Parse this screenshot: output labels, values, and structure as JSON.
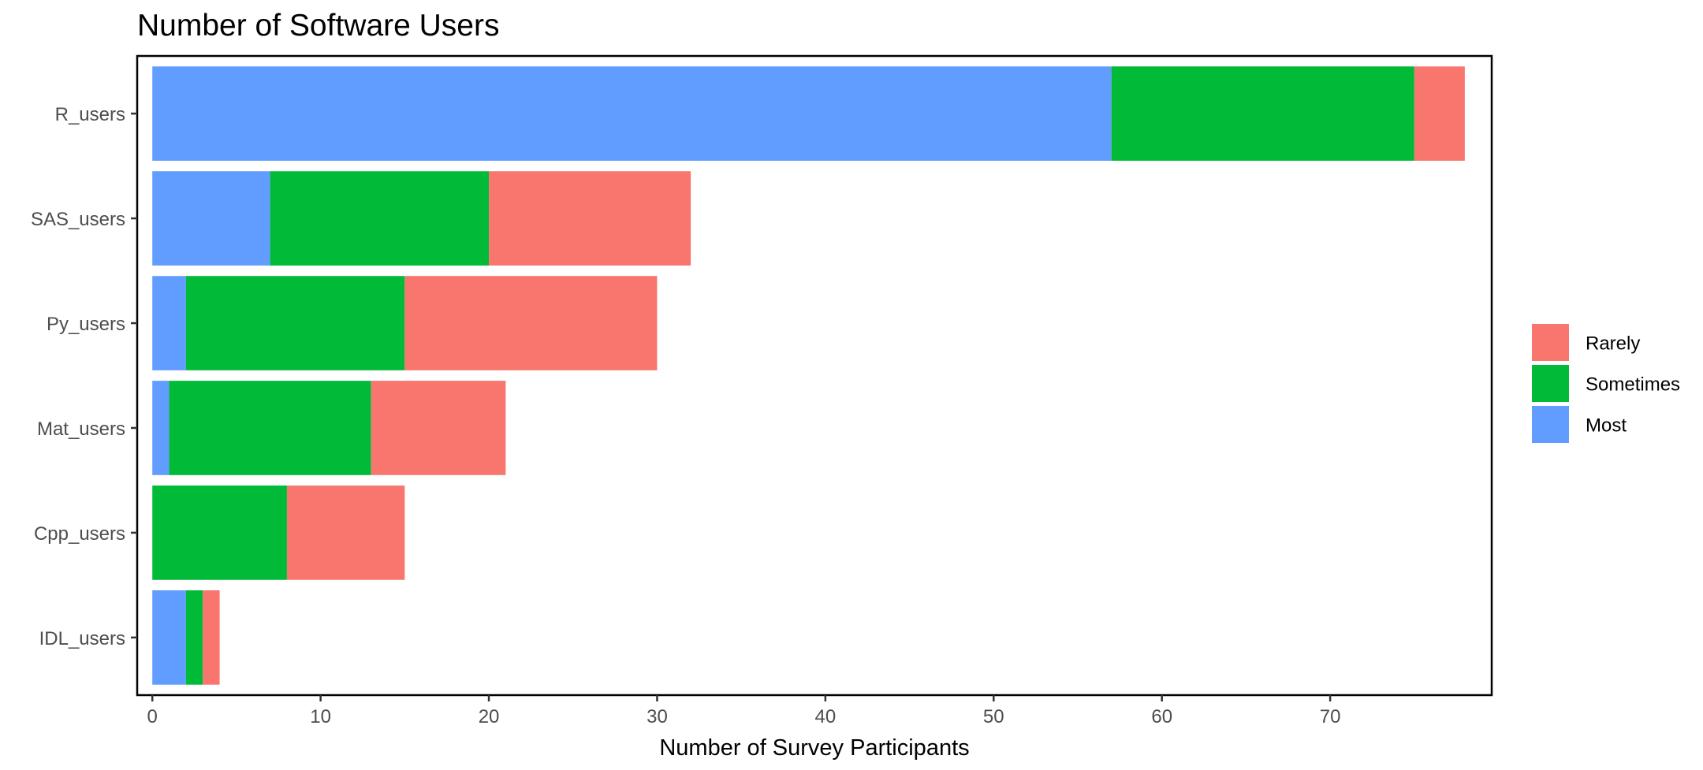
{
  "chart_data": {
    "type": "bar",
    "orientation": "horizontal",
    "stacked": true,
    "title": "Number of Software Users",
    "xlabel": "Number of Survey Participants",
    "ylabel": "",
    "xlim": [
      -0.9,
      79.6
    ],
    "xticks": [
      0,
      10,
      20,
      30,
      40,
      50,
      60,
      70
    ],
    "categories": [
      "R_users",
      "SAS_users",
      "Py_users",
      "Mat_users",
      "Cpp_users",
      "IDL_users"
    ],
    "series": [
      {
        "name": "Most",
        "color": "#619CFF",
        "values": [
          57,
          7,
          2,
          1,
          0,
          2
        ]
      },
      {
        "name": "Sometimes",
        "color": "#00BA38",
        "values": [
          18,
          13,
          13,
          12,
          8,
          1
        ]
      },
      {
        "name": "Rarely",
        "color": "#F8766D",
        "values": [
          3,
          12,
          15,
          8,
          7,
          1
        ]
      }
    ],
    "legend": {
      "position": "right",
      "order": [
        "Rarely",
        "Sometimes",
        "Most"
      ]
    },
    "grid": false
  }
}
